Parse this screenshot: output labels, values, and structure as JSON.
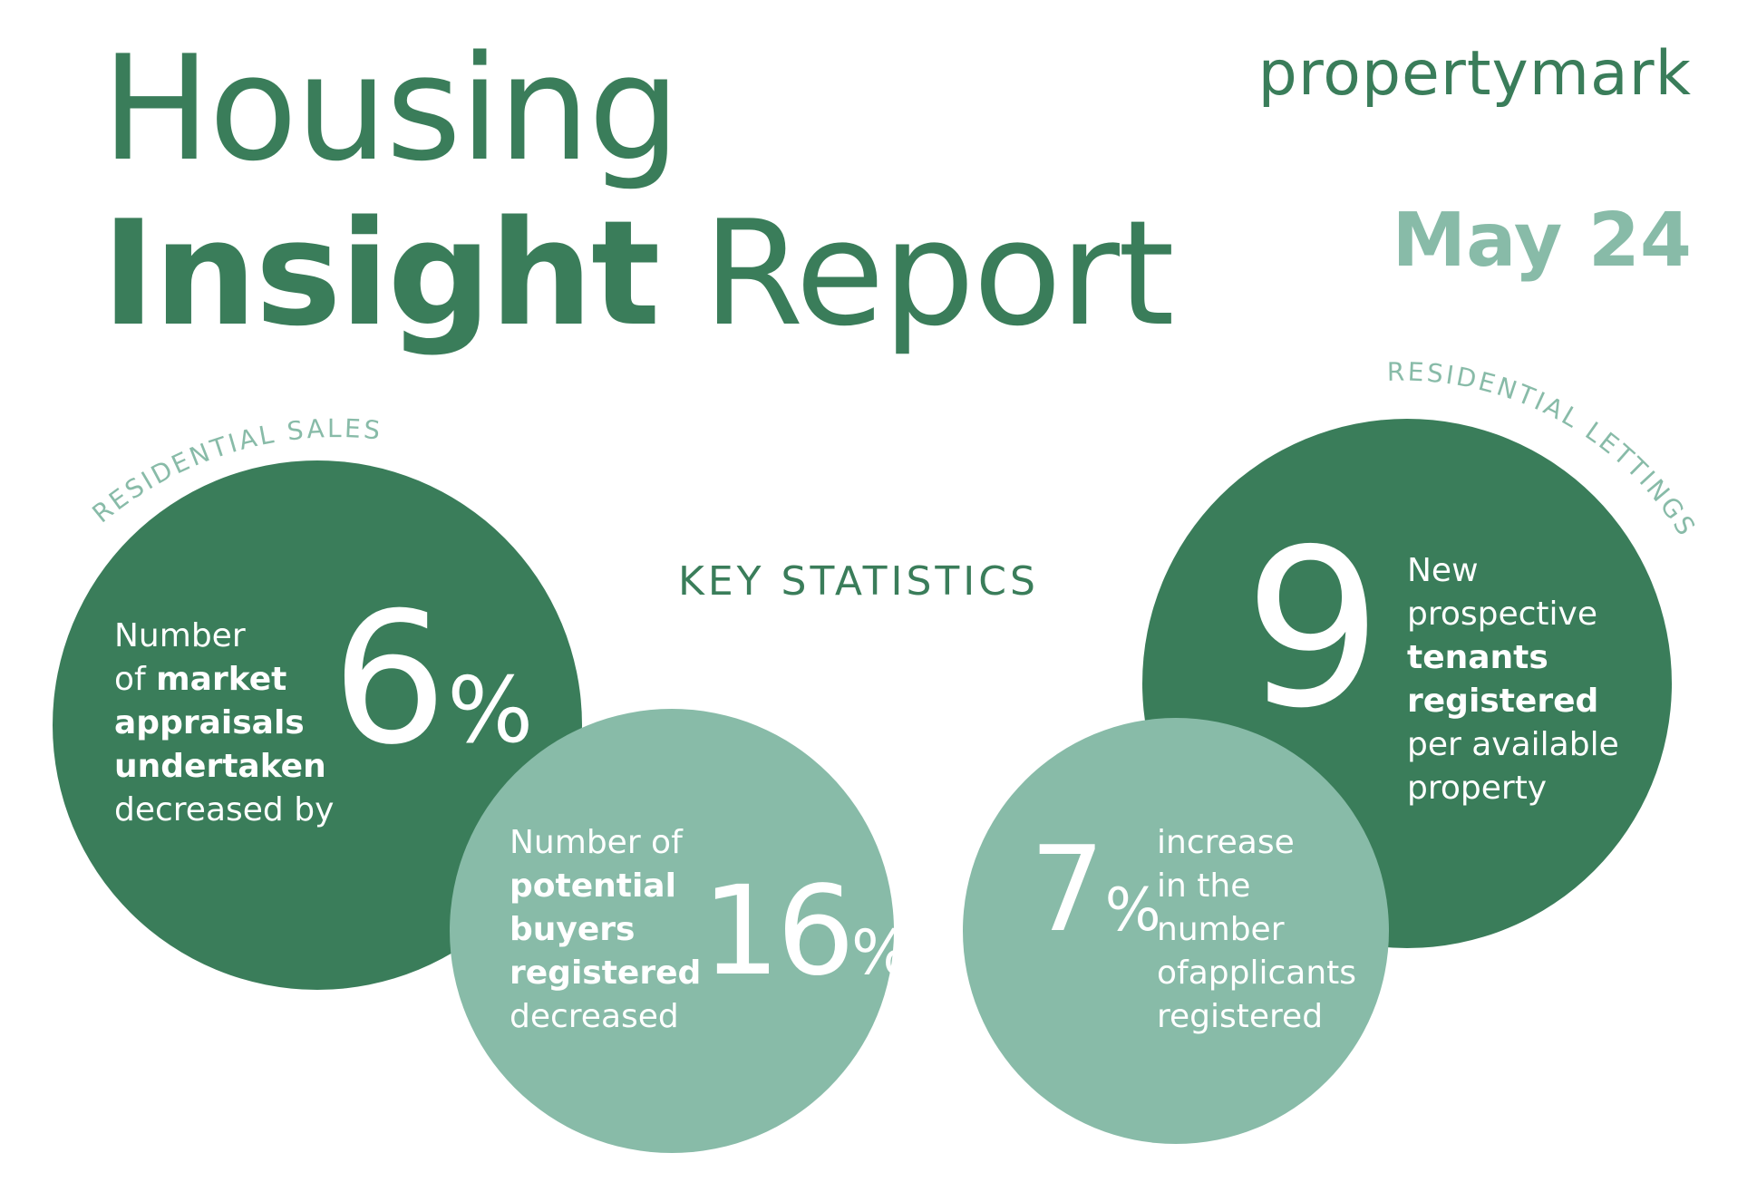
{
  "header": {
    "title_line1": "Housing",
    "title_line2_bold": "Insight",
    "title_line2_rest": " Report",
    "brand": "propertymark",
    "date": "May 24"
  },
  "section_title": "KEY STATISTICS",
  "arc_labels": {
    "sales": "RESIDENTIAL SALES",
    "lettings": "RESIDENTIAL LETTINGS"
  },
  "stats": {
    "market_appraisals": {
      "line1": "Number",
      "line2_pre": "of ",
      "line2_bold": "market",
      "line3_bold": "appraisals",
      "line4_bold": "undertaken",
      "line5": "decreased by",
      "value": "6",
      "unit": "%"
    },
    "potential_buyers": {
      "line1": "Number of",
      "line2_bold": "potential",
      "line3_bold": "buyers",
      "line4_bold": "registered",
      "line5": "decreased",
      "value": "16",
      "unit": "%"
    },
    "prospective_tenants": {
      "value": "9",
      "line1": "New",
      "line2": "prospective",
      "line3_bold": "tenants",
      "line4_bold": "registered",
      "line5": "per available",
      "line6": "property"
    },
    "applicants": {
      "value": "7",
      "unit": "%",
      "line1": "increase",
      "line2": "in the",
      "line3": "number",
      "line4": "ofapplicants",
      "line5": "registered"
    }
  },
  "colors": {
    "dark_green": "#3a7d5a",
    "light_green": "#88bba8"
  }
}
